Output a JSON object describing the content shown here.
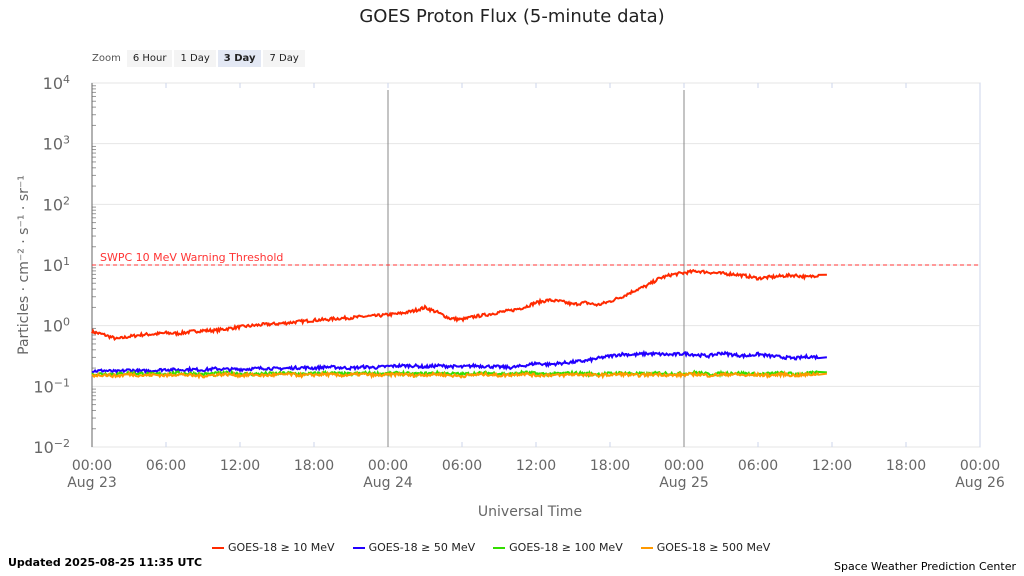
{
  "chart_data": {
    "type": "line",
    "title": "GOES Proton Flux (5-minute data)",
    "xlabel": "Universal Time",
    "ylabel": "Particles · cm⁻² · s⁻¹ · sr⁻¹",
    "y_scale": "log",
    "ylim_log10": [
      -2,
      4
    ],
    "y_ticks": [
      {
        "base": "10",
        "exp": "4"
      },
      {
        "base": "10",
        "exp": "3"
      },
      {
        "base": "10",
        "exp": "2"
      },
      {
        "base": "10",
        "exp": "1"
      },
      {
        "base": "10",
        "exp": "0"
      },
      {
        "base": "10",
        "exp": "−1"
      },
      {
        "base": "10",
        "exp": "−2"
      }
    ],
    "xlim_hours": [
      0,
      72
    ],
    "x_ticks": [
      {
        "t": "00:00",
        "d": "Aug 23"
      },
      {
        "t": "06:00",
        "d": ""
      },
      {
        "t": "12:00",
        "d": ""
      },
      {
        "t": "18:00",
        "d": ""
      },
      {
        "t": "00:00",
        "d": "Aug 24"
      },
      {
        "t": "06:00",
        "d": ""
      },
      {
        "t": "12:00",
        "d": ""
      },
      {
        "t": "18:00",
        "d": ""
      },
      {
        "t": "00:00",
        "d": "Aug 25"
      },
      {
        "t": "06:00",
        "d": ""
      },
      {
        "t": "12:00",
        "d": ""
      },
      {
        "t": "18:00",
        "d": ""
      },
      {
        "t": "00:00",
        "d": "Aug 26"
      }
    ],
    "threshold": {
      "label": "SWPC 10 MeV Warning Threshold",
      "log10_value": 1,
      "color": "#ff3333"
    },
    "x_hours_note": "series values are log10 flux, hourly from 00:00 Aug 23",
    "series": [
      {
        "name": "GOES-18 ≥ 10 MeV",
        "color": "#ff2a00",
        "values": [
          -0.1,
          -0.15,
          -0.22,
          -0.18,
          -0.15,
          -0.14,
          -0.12,
          -0.13,
          -0.1,
          -0.08,
          -0.08,
          -0.05,
          -0.02,
          0.0,
          0.02,
          0.03,
          0.05,
          0.07,
          0.09,
          0.1,
          0.12,
          0.13,
          0.15,
          0.16,
          0.18,
          0.2,
          0.24,
          0.3,
          0.22,
          0.12,
          0.1,
          0.15,
          0.18,
          0.22,
          0.25,
          0.3,
          0.38,
          0.42,
          0.4,
          0.35,
          0.38,
          0.34,
          0.4,
          0.48,
          0.58,
          0.66,
          0.78,
          0.84,
          0.87,
          0.9,
          0.88,
          0.86,
          0.85,
          0.82,
          0.78,
          0.8,
          0.82,
          0.83,
          0.8,
          0.84
        ]
      },
      {
        "name": "GOES-18 ≥ 50 MeV",
        "color": "#2200ff",
        "values": [
          -0.75,
          -0.74,
          -0.76,
          -0.73,
          -0.75,
          -0.74,
          -0.72,
          -0.73,
          -0.72,
          -0.73,
          -0.71,
          -0.72,
          -0.72,
          -0.71,
          -0.7,
          -0.71,
          -0.7,
          -0.69,
          -0.7,
          -0.68,
          -0.69,
          -0.7,
          -0.68,
          -0.69,
          -0.67,
          -0.66,
          -0.66,
          -0.68,
          -0.66,
          -0.67,
          -0.68,
          -0.66,
          -0.67,
          -0.68,
          -0.69,
          -0.66,
          -0.62,
          -0.64,
          -0.62,
          -0.6,
          -0.58,
          -0.54,
          -0.5,
          -0.47,
          -0.48,
          -0.46,
          -0.47,
          -0.48,
          -0.46,
          -0.48,
          -0.5,
          -0.45,
          -0.48,
          -0.5,
          -0.47,
          -0.5,
          -0.52,
          -0.54,
          -0.51,
          -0.52
        ]
      },
      {
        "name": "GOES-18 ≥ 100 MeV",
        "color": "#33dd00",
        "values": [
          -0.8,
          -0.79,
          -0.8,
          -0.78,
          -0.79,
          -0.8,
          -0.79,
          -0.78,
          -0.79,
          -0.8,
          -0.79,
          -0.78,
          -0.79,
          -0.8,
          -0.79,
          -0.79,
          -0.78,
          -0.8,
          -0.79,
          -0.78,
          -0.79,
          -0.8,
          -0.78,
          -0.79,
          -0.79,
          -0.78,
          -0.8,
          -0.79,
          -0.78,
          -0.79,
          -0.8,
          -0.79,
          -0.78,
          -0.79,
          -0.8,
          -0.77,
          -0.79,
          -0.8,
          -0.79,
          -0.78,
          -0.79,
          -0.8,
          -0.79,
          -0.78,
          -0.79,
          -0.8,
          -0.78,
          -0.79,
          -0.79,
          -0.77,
          -0.8,
          -0.79,
          -0.78,
          -0.79,
          -0.8,
          -0.79,
          -0.78,
          -0.8,
          -0.79,
          -0.77
        ]
      },
      {
        "name": "GOES-18 ≥ 500 MeV",
        "color": "#ff9900",
        "values": [
          -0.82,
          -0.81,
          -0.83,
          -0.8,
          -0.82,
          -0.81,
          -0.82,
          -0.8,
          -0.82,
          -0.83,
          -0.81,
          -0.8,
          -0.82,
          -0.81,
          -0.82,
          -0.81,
          -0.8,
          -0.82,
          -0.81,
          -0.8,
          -0.82,
          -0.81,
          -0.8,
          -0.82,
          -0.81,
          -0.8,
          -0.82,
          -0.81,
          -0.8,
          -0.82,
          -0.83,
          -0.81,
          -0.8,
          -0.82,
          -0.81,
          -0.79,
          -0.82,
          -0.81,
          -0.82,
          -0.8,
          -0.81,
          -0.82,
          -0.81,
          -0.8,
          -0.82,
          -0.81,
          -0.8,
          -0.82,
          -0.81,
          -0.8,
          -0.82,
          -0.81,
          -0.8,
          -0.82,
          -0.81,
          -0.82,
          -0.8,
          -0.82,
          -0.81,
          -0.79
        ]
      }
    ]
  },
  "zoom": {
    "label": "Zoom",
    "options": [
      "6 Hour",
      "1 Day",
      "3 Day",
      "7 Day"
    ],
    "selected": "3 Day"
  },
  "footer": {
    "updated": "Updated 2025-08-25 11:35 UTC",
    "credit": "Space Weather Prediction Center"
  }
}
